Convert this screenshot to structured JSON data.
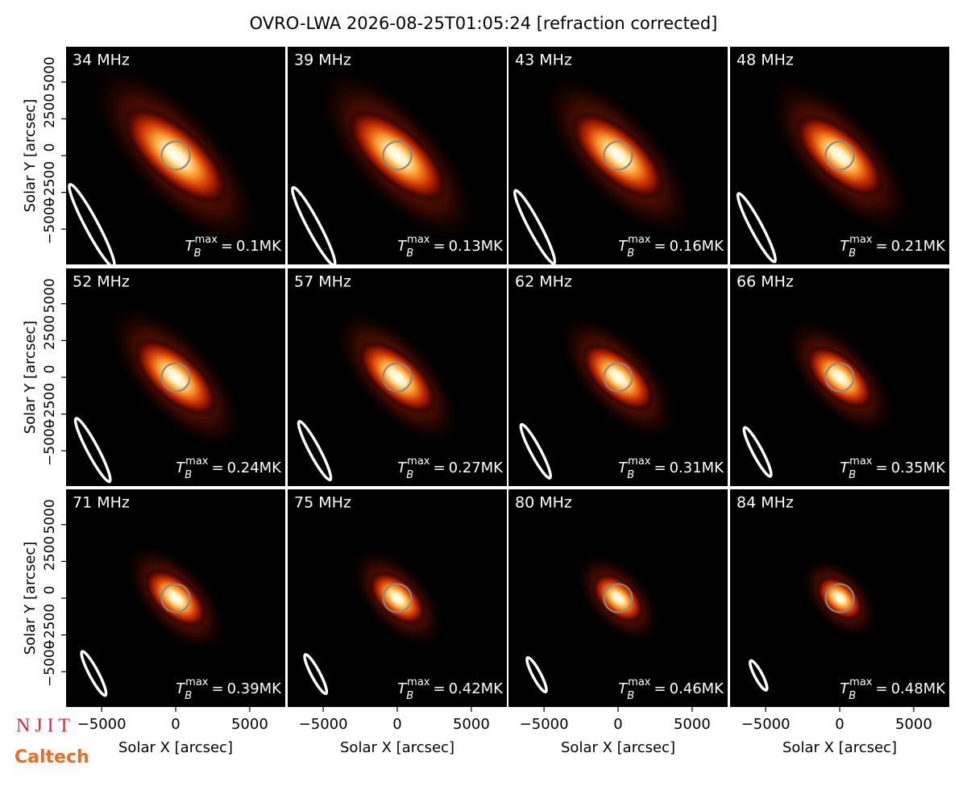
{
  "title": "OVRO-LWA 2026-08-25T01:05:24 [refraction corrected]",
  "x_label": "Solar X [arcsec]",
  "y_label": "Solar Y [arcsec]",
  "xlim": [
    -7400,
    7400
  ],
  "ylim": [
    -7400,
    7400
  ],
  "xticks": [
    {
      "value": -5000,
      "label": "−5000"
    },
    0,
    5000
  ],
  "yticks": [
    {
      "value": -5000,
      "label": "−5000"
    },
    {
      "value": -2500,
      "label": "−2500"
    },
    0,
    2500,
    5000
  ],
  "tb_symbol": "T",
  "tb_sub": "B",
  "tb_sup": "max",
  "tb_equals": "=",
  "tb_unit": "MK",
  "panels": [
    {
      "freq_label": "34 MHz",
      "tb_max": 0.1
    },
    {
      "freq_label": "39 MHz",
      "tb_max": 0.13
    },
    {
      "freq_label": "43 MHz",
      "tb_max": 0.16
    },
    {
      "freq_label": "48 MHz",
      "tb_max": 0.21
    },
    {
      "freq_label": "52 MHz",
      "tb_max": 0.24
    },
    {
      "freq_label": "57 MHz",
      "tb_max": 0.27
    },
    {
      "freq_label": "62 MHz",
      "tb_max": 0.31
    },
    {
      "freq_label": "66 MHz",
      "tb_max": 0.35
    },
    {
      "freq_label": "71 MHz",
      "tb_max": 0.39
    },
    {
      "freq_label": "75 MHz",
      "tb_max": 0.42
    },
    {
      "freq_label": "80 MHz",
      "tb_max": 0.46
    },
    {
      "freq_label": "84 MHz",
      "tb_max": 0.48
    }
  ],
  "logos": [
    "N J I T",
    "Caltech"
  ]
}
